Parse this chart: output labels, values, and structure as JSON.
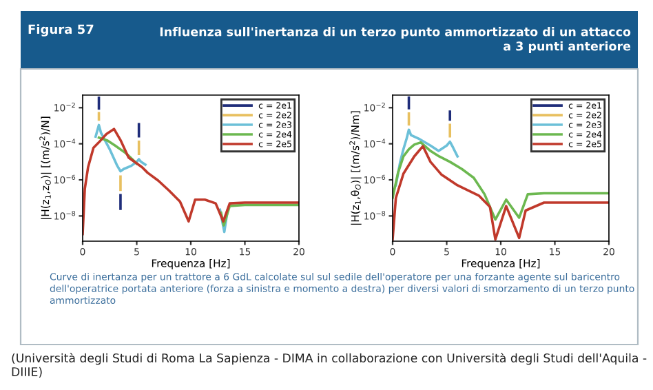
{
  "chart_data": [
    {
      "type": "line",
      "title": "Influenza sull'inertanza di un terzo punto ammortizzato di un attacco\na 3 punti anteriore",
      "subtitle": "Figura 57",
      "xlabel": "Frequenza [Hz]",
      "ylabel": "|H(z$_{1}$,z$_{O}$)| [(m/s$^{2}$)/N]",
      "log": "y",
      "grid": false,
      "legend": "top right",
      "marker": "none",
      "line_style": "solid",
      "xlim": [
        0,
        20
      ],
      "xticks": [
        0,
        5,
        10,
        15,
        20
      ],
      "ylim": [
        4e-10,
        0.05
      ],
      "yticks": [
        {
          "value": 0.01,
          "label": "10$^{−2}$"
        },
        {
          "value": 0.0001,
          "label": "10$^{−4}$"
        },
        {
          "value": 1e-06,
          "label": "10$^{−6}$"
        },
        {
          "value": 1e-08,
          "label": "10$^{−8}$"
        }
      ],
      "series": [
        {
          "name": "c = 2e1",
          "color": "#1f2d7a",
          "x": [
            1.5,
            1.5,
            null,
            3.5,
            3.5,
            null,
            5.2,
            5.2
          ],
          "values": [
            0.009,
            0.035,
            null,
            1.4e-07,
            2.5e-08,
            null,
            0.00026,
            0.0012
          ]
        },
        {
          "name": "c = 2e2",
          "color": "#e8c060",
          "x": [
            1.5,
            1.5,
            null,
            3.5,
            3.5,
            null,
            5.2,
            5.2
          ],
          "values": [
            0.0022,
            0.005,
            null,
            1.5e-06,
            2.8e-07,
            null,
            2.8e-05,
            0.00013
          ]
        },
        {
          "name": "c = 2e3",
          "color": "#6cc0d8",
          "x": [
            1.2,
            1.5,
            1.7,
            2.5,
            3.2,
            3.5,
            3.8,
            4.5,
            5.0,
            5.2,
            5.4,
            5.8,
            null,
            12.7,
            13.1,
            13.4
          ],
          "values": [
            0.00025,
            0.0011,
            0.0004,
            5e-05,
            6e-06,
            3e-06,
            4e-06,
            6e-06,
            1e-05,
            1.4e-05,
            1e-05,
            7e-06,
            null,
            2.2e-08,
            1.3e-09,
            2e-08
          ]
        },
        {
          "name": "c = 2e4",
          "color": "#6cb850",
          "x": [
            1.5,
            2.3,
            3.0,
            4.0,
            5.0,
            null,
            12.8,
            13.05,
            13.6,
            15,
            20
          ],
          "values": [
            0.00022,
            0.00015,
            8e-05,
            3e-05,
            8e-06,
            null,
            1.5e-08,
            3e-09,
            3.6e-08,
            4.1e-08,
            4.1e-08
          ]
        },
        {
          "name": "c = 2e5",
          "color": "#c0392b",
          "x": [
            0,
            0.2,
            0.5,
            1.0,
            1.5,
            2.2,
            2.9,
            3.5,
            4.25,
            5.5,
            6,
            7,
            8,
            9,
            9.8,
            10.4,
            11.3,
            12.3,
            13,
            13.6,
            15,
            20
          ],
          "values": [
            1e-09,
            3.2e-07,
            5e-06,
            6e-05,
            0.00012,
            0.00035,
            0.00066,
            0.00016,
            1.7e-05,
            5e-06,
            2.5e-06,
            9e-07,
            2.5e-07,
            6.3e-08,
            5e-09,
            8e-08,
            8e-08,
            5e-08,
            5e-09,
            5e-08,
            5.5e-08,
            5.5e-08
          ]
        }
      ],
      "annotations": [
        "Curve di inertanza per un trattore a 6 GdL calcolate sul sul sedile dell'operatore per una forzante agente sul baricentro dell'operatrice portata anteriore (forza a sinistra e momento a destra) per diversi valori di smorzamento di un terzo punto ammortizzato",
        "(Università degli Studi di Roma La Sapienza - DIMA in collaborazione con Università degli Studi dell'Aquila - DIIIE)"
      ]
    },
    {
      "type": "line",
      "xlabel": "Frequenza [Hz]",
      "ylabel": "|H(z$_{1}$,θ$_{O}$)| [(m/s$^{2}$)/Nm]",
      "log": "y",
      "grid": false,
      "legend": "top right",
      "marker": "none",
      "line_style": "solid",
      "xlim": [
        0,
        20
      ],
      "xticks": [
        0,
        5,
        10,
        15,
        20
      ],
      "ylim": [
        4e-10,
        0.05
      ],
      "yticks": [
        {
          "value": 0.01,
          "label": "10$^{−2}$"
        },
        {
          "value": 0.0001,
          "label": "10$^{−4}$"
        },
        {
          "value": 1e-06,
          "label": "10$^{−6}$"
        },
        {
          "value": 1e-08,
          "label": "10$^{−8}$"
        }
      ],
      "series": [
        {
          "name": "c = 2e1",
          "color": "#1f2d7a",
          "x": [
            1.5,
            1.5,
            null,
            5.3,
            5.3
          ],
          "values": [
            0.0094,
            0.036,
            null,
            0.0022,
            0.006
          ]
        },
        {
          "name": "c = 2e2",
          "color": "#e8c060",
          "x": [
            1.5,
            1.5,
            null,
            5.3,
            5.3
          ],
          "values": [
            0.0012,
            0.0047,
            null,
            0.00026,
            0.0011
          ]
        },
        {
          "name": "c = 2e3",
          "color": "#6cc0d8",
          "x": [
            0.3,
            0.7,
            1.0,
            1.3,
            1.5,
            1.7,
            2.5,
            3.5,
            4.25,
            5.0,
            5.3,
            5.6,
            6.0
          ],
          "values": [
            5e-07,
            1e-05,
            5e-05,
            0.0002,
            0.0006,
            0.0003,
            0.00018,
            8e-05,
            4e-05,
            8e-05,
            0.00013,
            6e-05,
            2e-05
          ]
        },
        {
          "name": "c = 2e4",
          "color": "#6cb850",
          "x": [
            0,
            0.5,
            1.0,
            1.5,
            2.0,
            2.6,
            3.5,
            4.3,
            5.3,
            6.4,
            7.5,
            8.5,
            9.5,
            10.5,
            11.7,
            12.5,
            14,
            20
          ],
          "values": [
            1e-07,
            2.5e-06,
            2e-05,
            5e-05,
            9e-05,
            0.00012,
            4e-05,
            2e-05,
            1e-05,
            4e-06,
            1.3e-06,
            1.6e-07,
            6.3e-09,
            8e-08,
            8e-09,
            1.6e-07,
            1.8e-07,
            1.8e-07
          ]
        },
        {
          "name": "c = 2e5",
          "color": "#c0392b",
          "x": [
            0,
            0.3,
            1.0,
            2.0,
            2.8,
            3.5,
            4.5,
            6.0,
            8.0,
            9.0,
            9.5,
            10.5,
            11.7,
            12.3,
            14,
            20
          ],
          "values": [
            5e-10,
            1e-07,
            2.2e-06,
            2e-05,
            7.4e-05,
            1e-05,
            2e-06,
            5e-07,
            1.3e-07,
            3.2e-08,
            5e-10,
            3.5e-08,
            6e-10,
            2e-08,
            5.5e-08,
            5.5e-08
          ]
        }
      ]
    }
  ]
}
